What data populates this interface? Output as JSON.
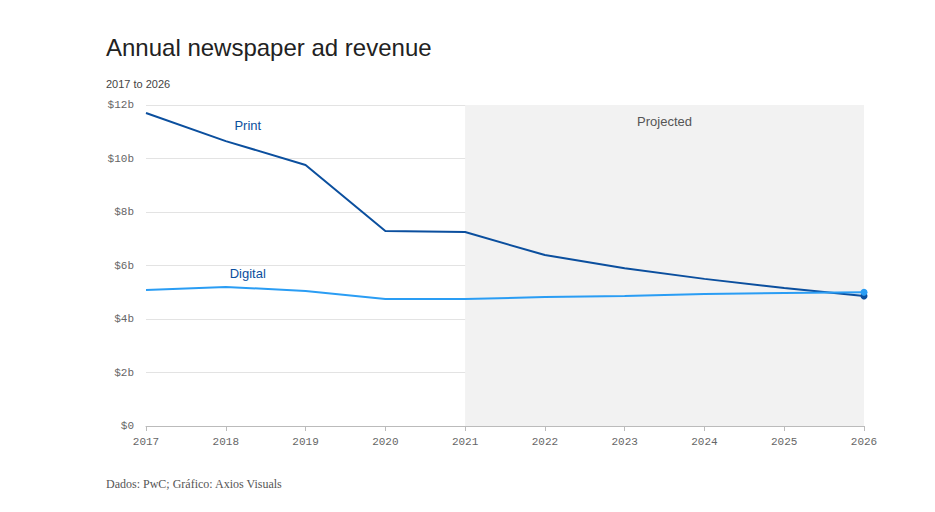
{
  "chart_data": {
    "type": "line",
    "title": "Annual newspaper ad revenue",
    "subtitle": "2017 to 2026",
    "source": "Dados: PwC; Gráfico: Axios Visuals",
    "categories": [
      "2017",
      "2018",
      "2019",
      "2020",
      "2021",
      "2022",
      "2023",
      "2024",
      "2025",
      "2026"
    ],
    "series": [
      {
        "name": "Print",
        "color": "#0b4f9e",
        "values": [
          11.7,
          10.65,
          9.76,
          7.29,
          7.25,
          6.39,
          5.9,
          5.5,
          5.16,
          4.86
        ]
      },
      {
        "name": "Digital",
        "color": "#2a9df4",
        "values": [
          5.08,
          5.2,
          5.05,
          4.75,
          4.75,
          4.82,
          4.86,
          4.93,
          4.97,
          5.0
        ]
      }
    ],
    "annotations": [
      {
        "text": "Projected",
        "x_start": "2021",
        "x_end": "2026"
      }
    ],
    "ylim": [
      0,
      12
    ],
    "yticks": [
      {
        "value": 0,
        "label": "$0"
      },
      {
        "value": 2,
        "label": "$2b"
      },
      {
        "value": 4,
        "label": "$4b"
      },
      {
        "value": 6,
        "label": "$6b"
      },
      {
        "value": 8,
        "label": "$8b"
      },
      {
        "value": 10,
        "label": "$10b"
      },
      {
        "value": 12,
        "label": "$12b"
      }
    ],
    "grid": true
  }
}
